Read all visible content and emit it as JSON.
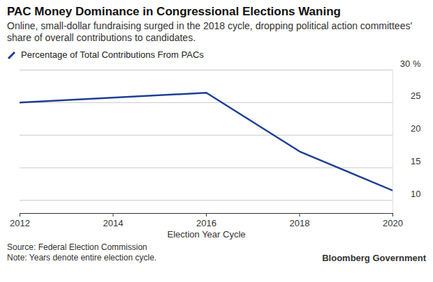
{
  "chart_data": {
    "type": "line",
    "title": "PAC Money Dominance in Congressional Elections Waning",
    "subtitle": "Online, small-dollar fundraising surged in the 2018 cycle, dropping political action committees' share of overall contributions to candidates.",
    "x_label": "Election Year Cycle",
    "source": "Source: Federal Election Commission",
    "note": "Note: Years denote entire election cycle.",
    "credit": "Bloomberg Government",
    "x": [
      2012,
      2016,
      2018,
      2020
    ],
    "series": [
      {
        "name": "Percentage of Total Contributions From PACs",
        "color": "#1d3f94",
        "values": [
          25,
          26.5,
          17.5,
          11.5
        ]
      }
    ],
    "xlim": [
      2012,
      2020
    ],
    "xticks": [
      2012,
      2014,
      2016,
      2018,
      2020
    ],
    "ylim": [
      8,
      30
    ],
    "yticks": [
      10,
      15,
      20,
      25,
      {
        "value": 30,
        "label": "30 %"
      }
    ],
    "grid": true,
    "legend": "top-left"
  }
}
